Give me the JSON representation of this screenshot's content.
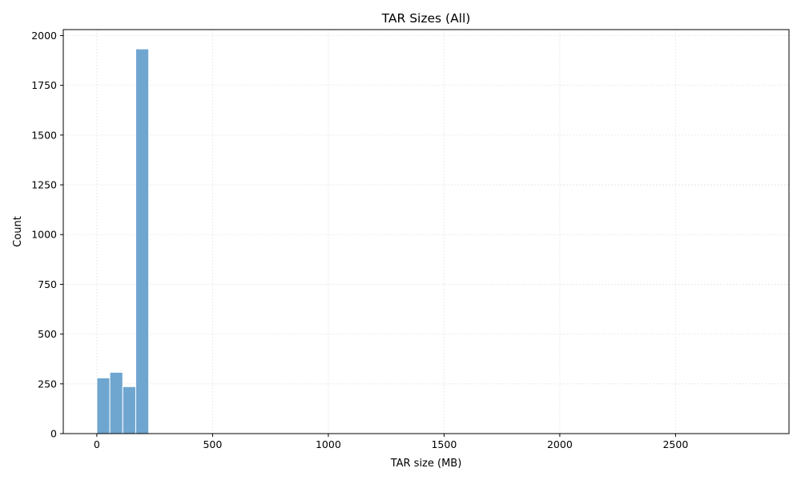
{
  "chart_data": {
    "type": "bar",
    "title": "TAR Sizes (All)",
    "xlabel": "TAR size (MB)",
    "ylabel": "Count",
    "xlim": [
      -145,
      2990
    ],
    "ylim": [
      0,
      2030
    ],
    "xticks": [
      0,
      500,
      1000,
      1500,
      2000,
      2500
    ],
    "yticks": [
      0,
      250,
      500,
      750,
      1000,
      1250,
      1500,
      1750,
      2000
    ],
    "grid": true,
    "bin_width": 56,
    "bars": [
      {
        "x0": 0,
        "x1": 56,
        "value": 280
      },
      {
        "x0": 56,
        "x1": 112,
        "value": 308
      },
      {
        "x0": 112,
        "x1": 168,
        "value": 236
      },
      {
        "x0": 168,
        "x1": 224,
        "value": 1933
      },
      {
        "x0": 224,
        "x1": 280,
        "value": 0
      },
      {
        "x0": 280,
        "x1": 336,
        "value": 0
      },
      {
        "x0": 336,
        "x1": 392,
        "value": 3
      }
    ],
    "colors": {
      "bar_fill": "#6fa6d0",
      "bar_edge": "#ffffff",
      "grid": "#dddddd",
      "axis": "#000000"
    }
  }
}
